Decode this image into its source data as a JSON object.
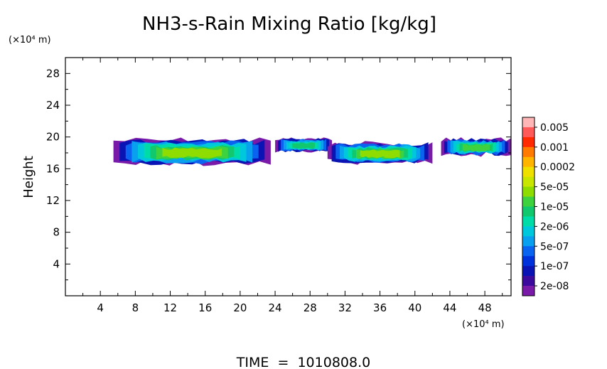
{
  "chart_data": {
    "type": "heatmap",
    "title": "NH3-s-Rain Mixing Ratio [kg/kg]",
    "xlabel": "",
    "ylabel": "Height",
    "x_unit_label": "(×10⁴ m)",
    "y_unit_label": "(×10⁴ m)",
    "xlim": [
      0,
      51
    ],
    "ylim": [
      0,
      30
    ],
    "x_ticks": [
      4,
      8,
      12,
      16,
      20,
      24,
      28,
      32,
      36,
      40,
      44,
      48
    ],
    "y_ticks": [
      4,
      8,
      12,
      16,
      20,
      24,
      28
    ],
    "time_label": "TIME  =  1010808.0",
    "colorbar": {
      "levels": [
        "0.005",
        "0.001",
        "0.0002",
        "5e-05",
        "1e-05",
        "2e-06",
        "5e-07",
        "1e-07",
        "2e-08"
      ],
      "colors": [
        "#ffb6b6",
        "#ff5a5a",
        "#ff2a00",
        "#ff7a00",
        "#ffb400",
        "#f0e000",
        "#c8e600",
        "#8fdc00",
        "#3fd23f",
        "#12c86e",
        "#00dca8",
        "#00c8dc",
        "#0aa0f0",
        "#0a64f0",
        "#0032dc",
        "#0a14b4",
        "#3c0a9c",
        "#7a1aa8"
      ]
    },
    "cloud_regions": [
      {
        "x_range": [
          5.5,
          23.5
        ],
        "y_range": [
          16.3,
          20.0
        ],
        "max_level": "5e-05"
      },
      {
        "x_range": [
          24.0,
          30.5
        ],
        "y_range": [
          18.0,
          20.0
        ],
        "max_level": "2e-06"
      },
      {
        "x_range": [
          30.0,
          42.0
        ],
        "y_range": [
          16.5,
          19.5
        ],
        "max_level": "5e-05"
      },
      {
        "x_range": [
          43.0,
          51.0
        ],
        "y_range": [
          17.5,
          20.0
        ],
        "max_level": "1e-05"
      }
    ]
  }
}
